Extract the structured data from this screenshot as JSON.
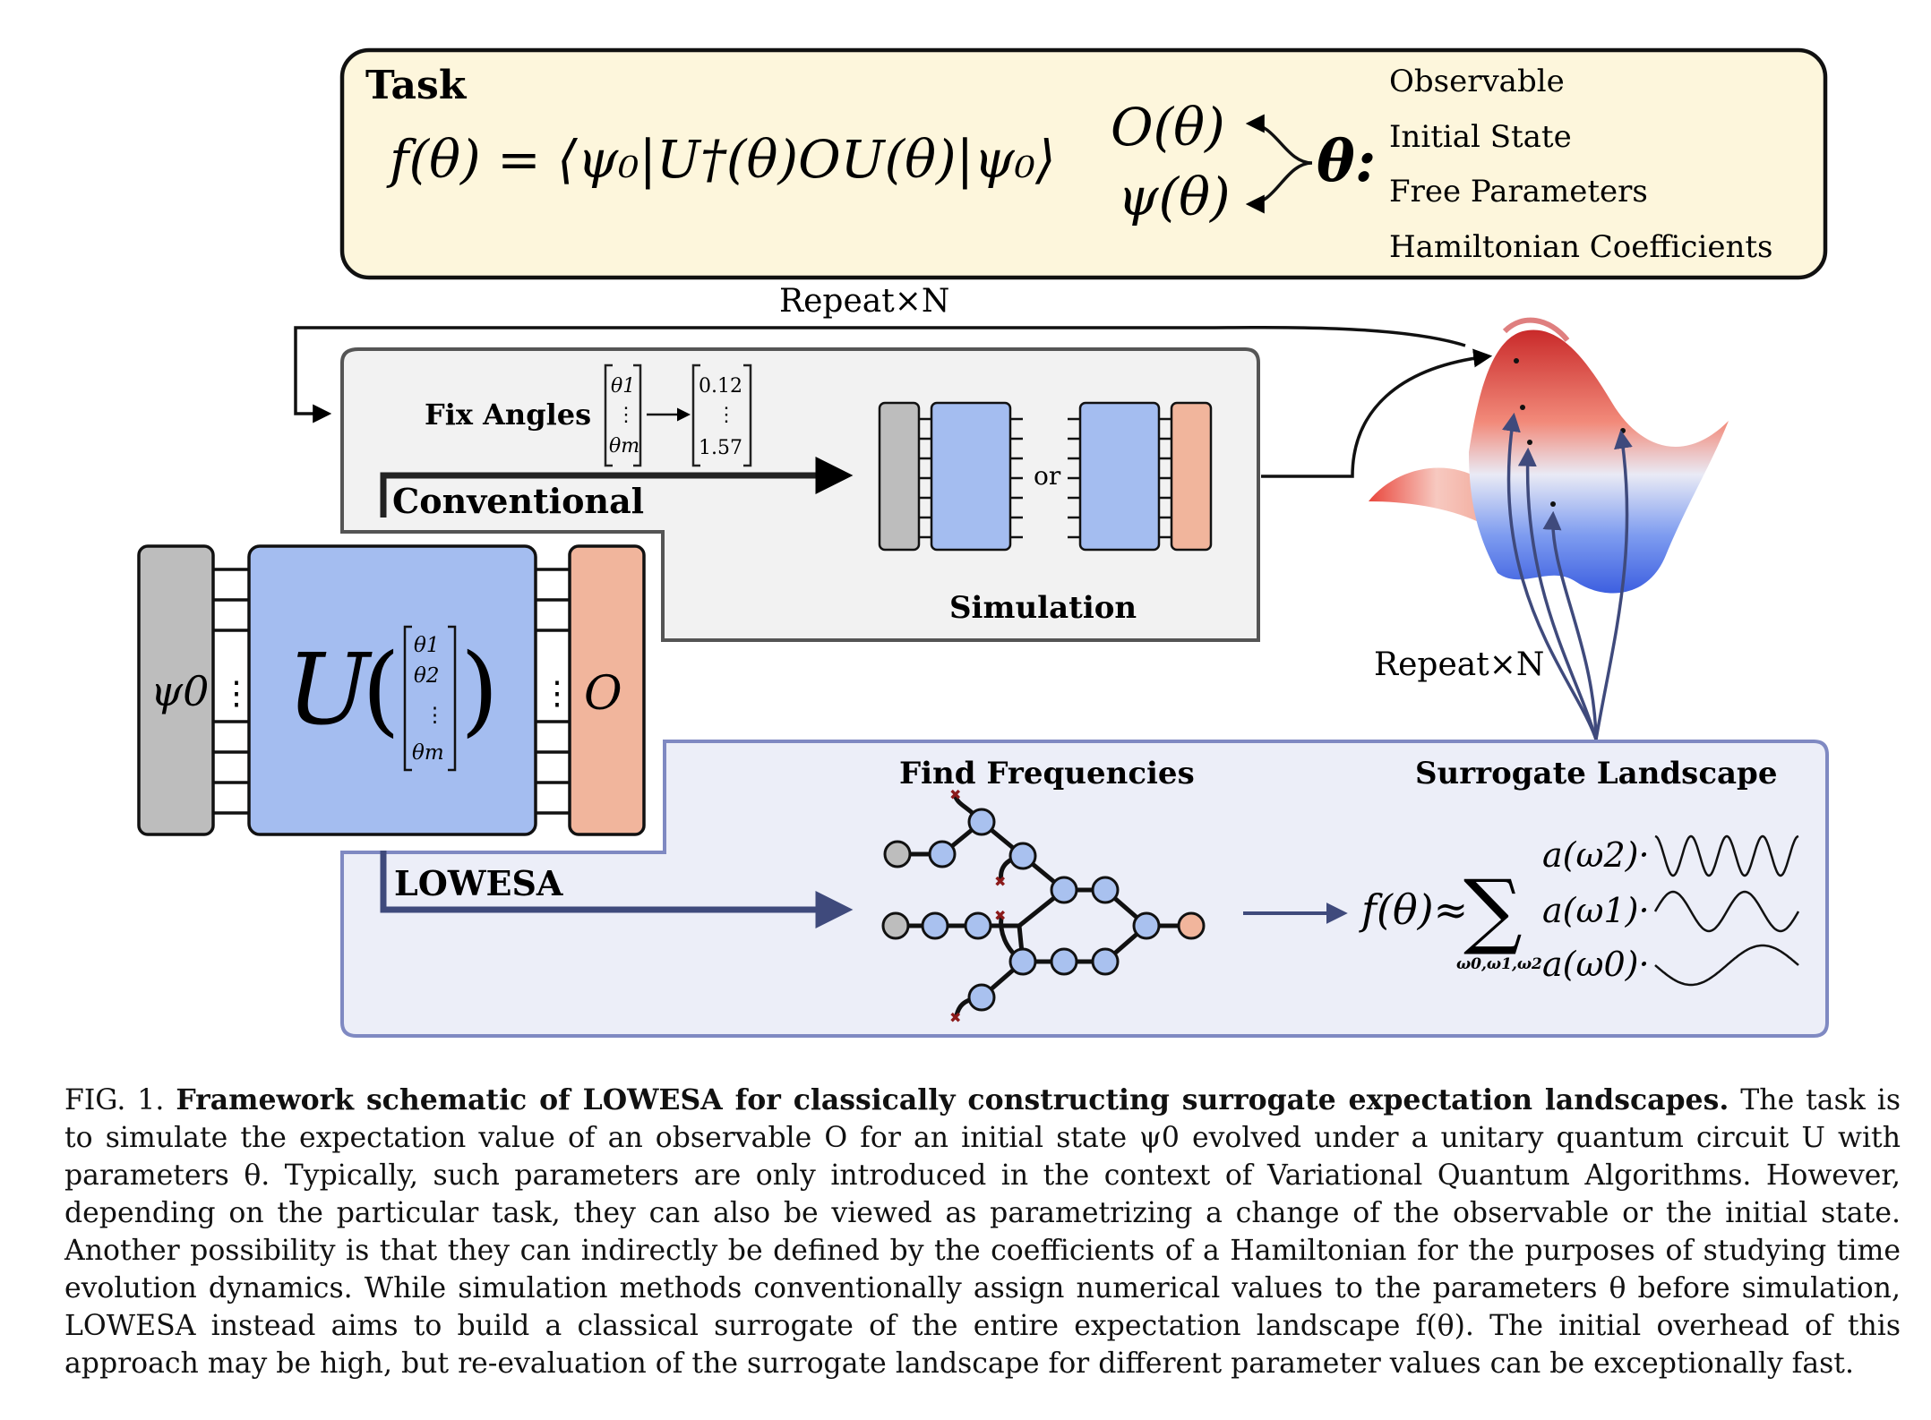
{
  "task": {
    "heading": "Task",
    "formula": "f(θ) = ⟨ψ₀|U†(θ)OU(θ)|ψ₀⟩",
    "o_theta": "O(θ)",
    "psi_theta": "ψ(θ)",
    "theta": "θ:",
    "roles": [
      "Observable",
      "Initial State",
      "Free Parameters",
      "Hamiltonian Coefficients"
    ]
  },
  "repeat_top": "Repeat×N",
  "repeat_bottom": "Repeat×N",
  "conventional": {
    "label": "Conventional",
    "fix_angles": "Fix Angles",
    "vector_symbolic": [
      "θ1",
      "⋮",
      "θm"
    ],
    "vector_numeric": [
      "0.12",
      "⋮",
      "1.57"
    ],
    "or": "or",
    "simulation": "Simulation"
  },
  "circuit": {
    "input": "ψ0",
    "unitary": "U",
    "params": [
      "θ1",
      "θ2",
      "⋮",
      "θm"
    ],
    "dots": "⋮",
    "observable": "O"
  },
  "lowesa": {
    "label": "LOWESA",
    "find_frequencies": "Find Frequencies",
    "surrogate_landscape": "Surrogate Landscape",
    "f_theta": "f(θ)≈",
    "sum_sub": "ω0,ω1,ω2",
    "terms": [
      "a(ω2)·",
      "a(ω1)·",
      "a(ω0)·"
    ]
  },
  "caption": {
    "label": "FIG. 1.",
    "title": "Framework schematic of LOWESA for classically constructing surrogate expectation landscapes.",
    "body": "The task is to simulate the expectation value of an observable O for an initial state ψ0 evolved under a unitary quantum circuit U with parameters θ. Typically, such parameters are only introduced in the context of Variational Quantum Algorithms. However, depending on the particular task, they can also be viewed as parametrizing a change of the observable or the initial state. Another possibility is that they can indirectly be defined by the coefficients of a Hamiltonian for the purposes of studying time evolution dynamics. While simulation methods conventionally assign numerical values to the parameters θ before simulation, LOWESA instead aims to build a classical surrogate of the entire expectation landscape f(θ). The initial overhead of this approach may be high, but re-evaluation of the surrogate landscape for different parameter values can be exceptionally fast."
  },
  "colors": {
    "task_bg": "#fdf6dc",
    "conv_bg": "#f2f2f2",
    "lowesa_bg": "#eceef8",
    "lowesa_border": "#7f89c2",
    "unitary_blue": "#a4bdf0",
    "input_grey": "#bdbdbd",
    "observable_salmon": "#f1b59c",
    "arrow_navy": "#3f4a7c",
    "node_blue": "#a9c1ef",
    "cross_red": "#8b1a1a"
  }
}
